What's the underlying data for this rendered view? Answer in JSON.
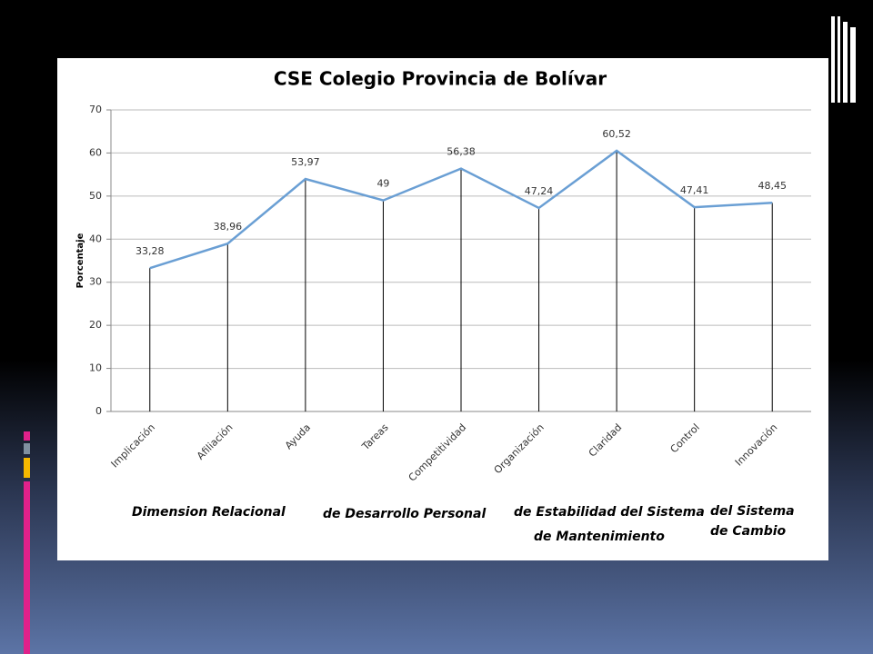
{
  "chart_data": {
    "type": "line",
    "title": "CSE Colegio Provincia de Bolívar",
    "y_label": "Porcentaje",
    "categories": [
      "Implicación",
      "Afiliación",
      "Ayuda",
      "Tareas",
      "Competitividad",
      "Organización",
      "Claridad",
      "Control",
      "Innovación"
    ],
    "values": [
      33.28,
      38.96,
      53.97,
      49,
      56.38,
      47.24,
      60.52,
      47.41,
      48.45
    ],
    "value_labels": [
      "33,28",
      "38,96",
      "53,97",
      "49",
      "56,38",
      "47,24",
      "60,52",
      "47,41",
      "48,45"
    ],
    "color": "#6a9fd4",
    "ylim": [
      0,
      70
    ],
    "yticks": [
      0,
      10,
      20,
      30,
      40,
      50,
      60,
      70
    ],
    "grid": true,
    "annotations": [
      "Dimension Relacional",
      "de Desarrollo Personal",
      "de Estabilidad del Sistema",
      "de Mantenimiento",
      "del Sistema",
      "de Cambio"
    ]
  }
}
